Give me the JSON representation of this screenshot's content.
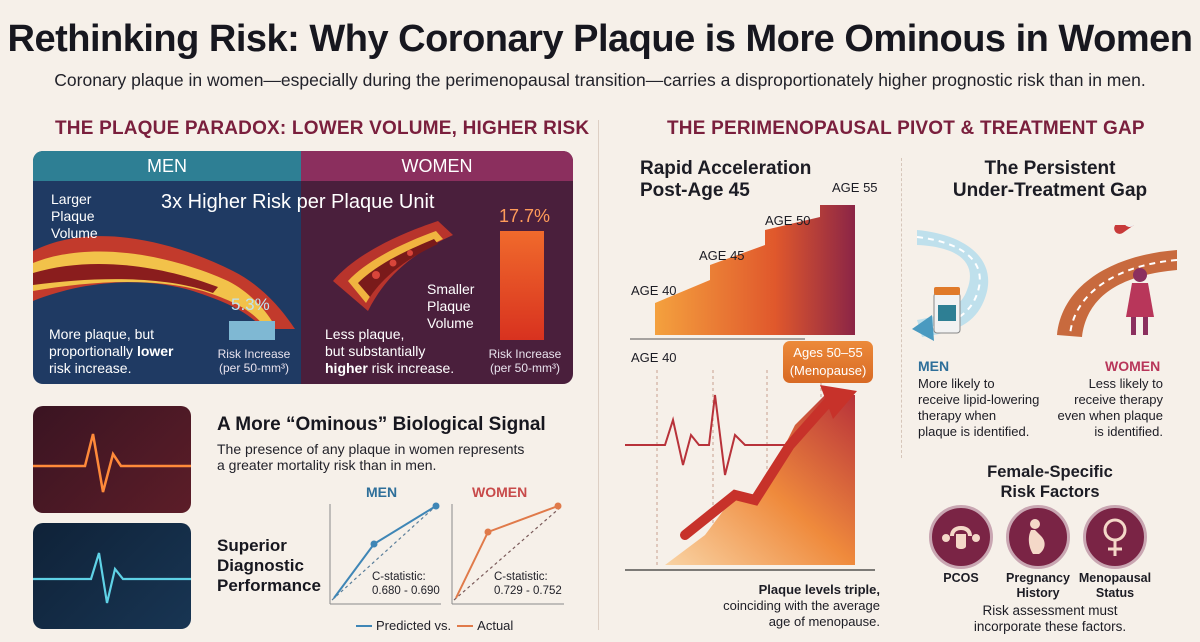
{
  "title": "Rethinking Risk: Why Coronary Plaque is More Ominous in Women",
  "subtitle": "Coronary plaque in women—especially during the perimenopausal transition—carries a disproportionately higher prognostic risk than in men.",
  "left_section": {
    "heading": "THE PLAQUE PARADOX: LOWER VOLUME, HIGHER RISK",
    "men_tab": "MEN",
    "women_tab": "WOMEN",
    "claim": "3x Higher Risk per Plaque Unit",
    "men_volume_label_1": "Larger",
    "men_volume_label_2": "Plaque",
    "men_volume_label_3": "Volume",
    "men_pct": "5.3%",
    "men_pct_value": 5.3,
    "men_desc_1": "More plaque, but",
    "men_desc_2a": "proportionally ",
    "men_desc_2b": "lower",
    "men_desc_3": "risk increase.",
    "men_cap_1": "Risk Increase",
    "men_cap_2": "(per 50-mm³)",
    "women_volume_label_1": "Smaller",
    "women_volume_label_2": "Plaque",
    "women_volume_label_3": "Volume",
    "women_pct": "17.7%",
    "women_pct_value": 17.7,
    "women_desc_1": "Less plaque,",
    "women_desc_2": "but substantially",
    "women_desc_3a": "higher",
    "women_desc_3b": " risk increase.",
    "women_cap_1": "Risk Increase",
    "women_cap_2": "(per 50-mm³)"
  },
  "signal": {
    "heading": "A More “Ominous” Biological Signal",
    "body_1": "The presence of any plaque in women represents",
    "body_2": "a greater mortality risk than in men."
  },
  "diagnostic": {
    "heading_1": "Superior",
    "heading_2": "Diagnostic",
    "heading_3": "Performance",
    "men_label": "MEN",
    "women_label": "WOMEN",
    "men_c_1": "C-statistic:",
    "men_c_2": "0.680 - 0.690",
    "women_c_1": "C-statistic:",
    "women_c_2": "0.729 - 0.752",
    "legend_predicted": "Predicted vs.",
    "legend_actual": "Actual"
  },
  "right_section": {
    "heading": "THE PERIMENOPAUSAL PIVOT & TREATMENT GAP",
    "accel_1": "Rapid Acceleration",
    "accel_2": "Post-Age 45",
    "ages": [
      "AGE 40",
      "AGE 45",
      "AGE 50",
      "AGE 55"
    ],
    "age_axis": "AGE 40",
    "callout_1": "Ages 50–55",
    "callout_2": "(Menopause)",
    "triple_1": "Plaque levels triple,",
    "triple_2": "coinciding with the average",
    "triple_3": "age of menopause."
  },
  "treatment_gap": {
    "heading_1": "The Persistent",
    "heading_2": "Under-Treatment Gap",
    "men_label": "MEN",
    "women_label": "WOMEN",
    "men_1": "More likely to",
    "men_2": "receive lipid-lowering",
    "men_3": "therapy when",
    "men_4": "plaque is identified.",
    "women_1": "Less likely to",
    "women_2": "receive therapy",
    "women_3": "even when plaque",
    "women_4": "is identified."
  },
  "risk_factors": {
    "heading_1": "Female-Specific",
    "heading_2": "Risk Factors",
    "pcos": "PCOS",
    "preg_1": "Pregnancy",
    "preg_2": "History",
    "meno_1": "Menopausal",
    "meno_2": "Status",
    "note_1": "Risk assessment must",
    "note_2": "incorporate these factors."
  },
  "colors": {
    "men": "#2e7f94",
    "women": "#8b2f5e",
    "accent_orange": "#e06a2a",
    "heading_maroon": "#7a1f3d"
  }
}
